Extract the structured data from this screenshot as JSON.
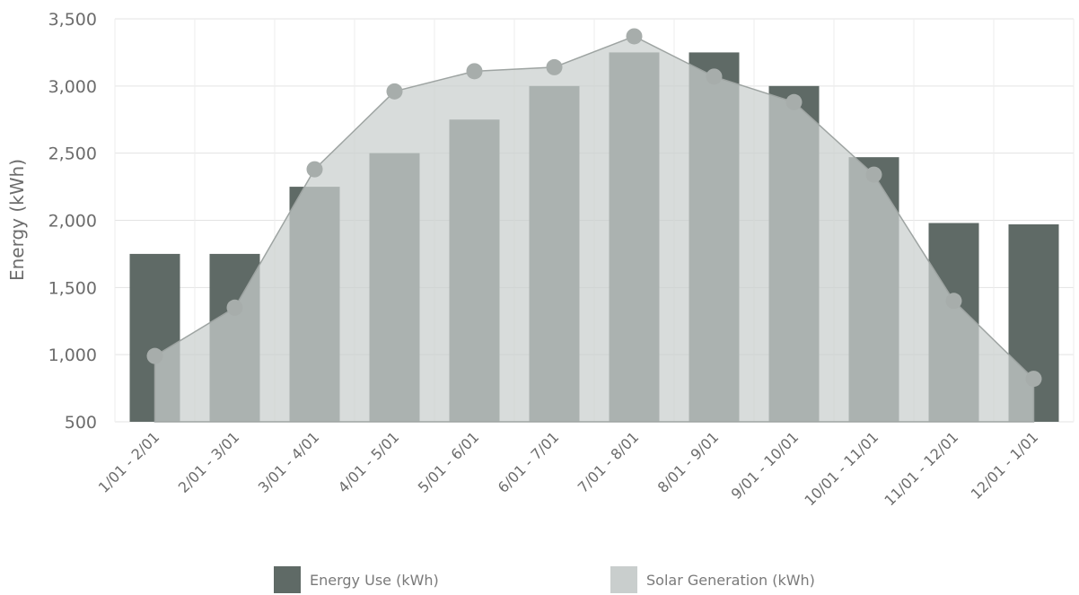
{
  "chart_data": {
    "type": "bar",
    "ylabel": "Energy (kWh)",
    "xlabel": "",
    "title": "",
    "ylim": [
      500,
      3500
    ],
    "yticks": [
      500,
      1000,
      1500,
      2000,
      2500,
      3000,
      3500
    ],
    "ytick_labels": [
      "500",
      "1,000",
      "1,500",
      "2,000",
      "2,500",
      "3,000",
      "3,500"
    ],
    "grid": true,
    "legend_position": "bottom",
    "categories": [
      "1/01 - 2/01",
      "2/01 - 3/01",
      "3/01 - 4/01",
      "4/01 - 5/01",
      "5/01 - 6/01",
      "6/01 - 7/01",
      "7/01 - 8/01",
      "8/01 - 9/01",
      "9/01 - 10/01",
      "10/01 - 11/01",
      "11/01 - 12/01",
      "12/01 - 1/01"
    ],
    "series": [
      {
        "name": "Energy Use (kWh)",
        "type": "bar",
        "color": "#5f6a66",
        "values": [
          1750,
          1750,
          2250,
          2500,
          2750,
          3000,
          3250,
          3250,
          3000,
          2470,
          1980,
          1970
        ]
      },
      {
        "name": "Solar Generation (kWh)",
        "type": "area",
        "color": "#c9cecd",
        "marker_color": "#a7adab",
        "values": [
          990,
          1350,
          2380,
          2960,
          3110,
          3140,
          3370,
          3070,
          2880,
          2340,
          1400,
          820
        ]
      }
    ]
  }
}
